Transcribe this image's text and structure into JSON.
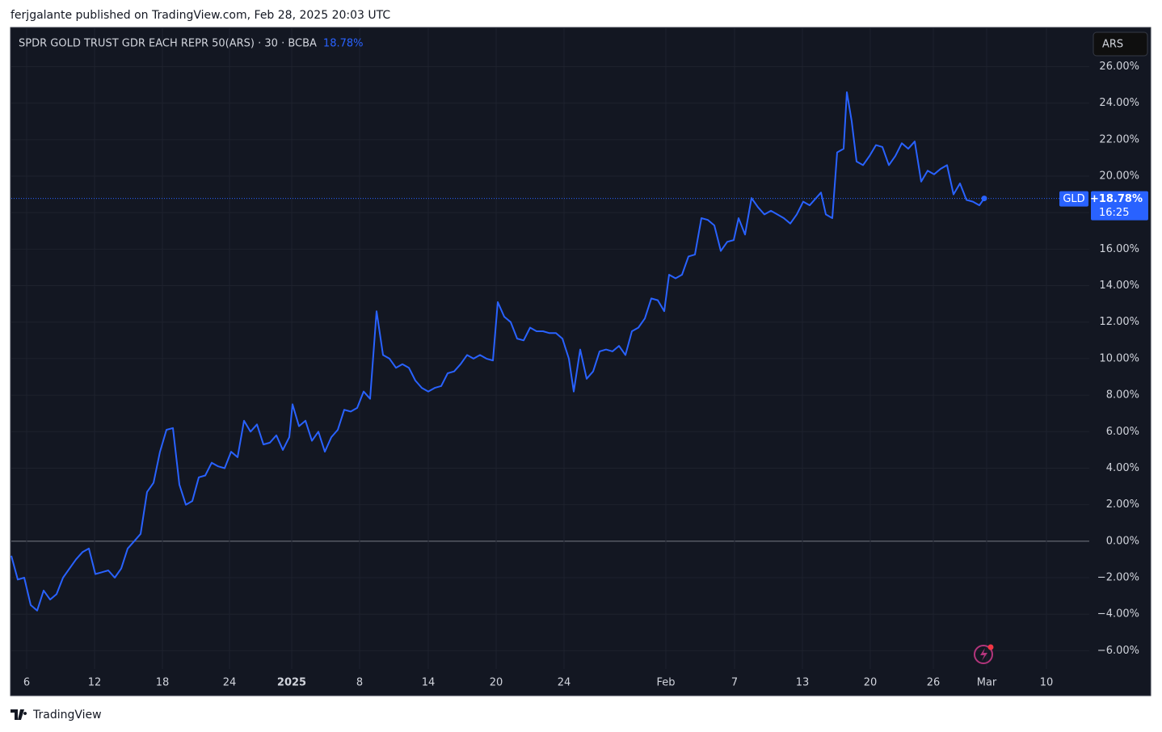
{
  "header": {
    "publisher": "ferjgalante published on TradingView.com, Feb 28, 2025 20:03 UTC"
  },
  "chart_data": {
    "type": "line",
    "title": "SPDR GOLD TRUST GDR EACH REPR 50(ARS) · 30 · BCBA",
    "change_label": "18.78%",
    "currency": "ARS",
    "last_value_label": "+18.78%",
    "countdown": "16:25",
    "x": [
      0,
      8,
      16,
      24,
      32,
      40,
      48,
      56,
      64,
      72,
      80,
      88,
      96,
      104,
      112,
      120,
      128,
      136,
      144,
      152,
      160,
      168,
      176,
      184,
      192,
      200,
      208,
      216,
      224,
      232,
      240,
      248,
      256,
      264,
      272,
      280,
      288,
      296,
      304,
      312,
      320,
      328,
      336,
      344,
      348,
      356,
      364,
      372,
      380,
      388,
      396,
      404,
      412,
      420,
      428,
      436,
      444,
      452,
      460,
      468,
      476,
      484,
      492,
      500,
      508,
      516,
      524,
      532,
      540,
      548,
      556,
      564,
      572,
      580,
      588,
      596,
      602,
      610,
      618,
      626,
      634,
      642,
      650,
      658,
      666,
      674,
      682,
      690,
      696,
      704,
      712,
      720,
      728,
      736,
      744,
      752,
      760,
      768,
      776,
      784,
      792,
      800,
      808,
      814,
      822,
      830,
      838,
      846,
      854,
      862,
      870,
      878,
      886,
      894,
      900,
      908,
      916,
      924,
      932,
      940,
      948,
      956,
      964,
      972,
      980,
      988,
      996,
      1002,
      1008,
      1016,
      1022,
      1030,
      1034,
      1040,
      1046,
      1054,
      1062,
      1070,
      1078,
      1086,
      1094,
      1102,
      1110,
      1118,
      1126,
      1134,
      1142,
      1150,
      1158,
      1166,
      1174,
      1182,
      1190,
      1198,
      1204
    ],
    "series": [
      {
        "name": "GLD",
        "color": "#2962ff",
        "values": [
          -0.8,
          -2.1,
          -2.0,
          -3.5,
          -3.8,
          -2.7,
          -3.2,
          -2.9,
          -2.0,
          -1.5,
          -1.0,
          -0.6,
          -0.4,
          -1.8,
          -1.7,
          -1.6,
          -2.0,
          -1.5,
          -0.4,
          0.0,
          0.4,
          2.7,
          3.2,
          4.9,
          6.1,
          6.2,
          3.1,
          2.0,
          2.2,
          3.5,
          3.6,
          4.3,
          4.1,
          4.0,
          4.9,
          4.6,
          6.6,
          6.0,
          6.4,
          5.3,
          5.4,
          5.8,
          5.0,
          5.7,
          7.5,
          6.3,
          6.6,
          5.5,
          6.0,
          4.9,
          5.7,
          6.1,
          7.2,
          7.1,
          7.3,
          8.2,
          7.8,
          12.6,
          10.2,
          10.0,
          9.5,
          9.7,
          9.5,
          8.8,
          8.4,
          8.2,
          8.4,
          8.5,
          9.2,
          9.3,
          9.7,
          10.2,
          10.0,
          10.2,
          10.0,
          9.9,
          13.1,
          12.3,
          12.0,
          11.1,
          11.0,
          11.7,
          11.5,
          11.5,
          11.4,
          11.4,
          11.1,
          10.0,
          8.2,
          10.5,
          8.9,
          9.3,
          10.4,
          10.5,
          10.4,
          10.7,
          10.2,
          11.5,
          11.7,
          12.2,
          13.3,
          13.2,
          12.6,
          14.6,
          14.4,
          14.6,
          15.6,
          15.7,
          17.7,
          17.6,
          17.3,
          15.9,
          16.4,
          16.5,
          17.7,
          16.8,
          18.8,
          18.3,
          17.9,
          18.1,
          17.9,
          17.7,
          17.4,
          17.9,
          18.6,
          18.4,
          18.8,
          19.1,
          17.9,
          17.7,
          21.3,
          21.5,
          24.6,
          23.0,
          20.8,
          20.6,
          21.1,
          21.7,
          21.6,
          20.6,
          21.1,
          21.8,
          21.5,
          21.9,
          19.7,
          20.3,
          20.1,
          20.4,
          20.6,
          19.0,
          19.6,
          18.7,
          18.6,
          18.4,
          18.78
        ]
      }
    ],
    "xlim": [
      0,
      1334
    ],
    "ylim": [
      -7,
      28.1
    ],
    "xticks": [
      {
        "value": 19,
        "label": "6"
      },
      {
        "value": 103,
        "label": "12"
      },
      {
        "value": 187,
        "label": "18"
      },
      {
        "value": 270,
        "label": "24"
      },
      {
        "value": 347,
        "label": "2025",
        "bold": true
      },
      {
        "value": 431,
        "label": "8"
      },
      {
        "value": 516,
        "label": "14"
      },
      {
        "value": 600,
        "label": "20"
      },
      {
        "value": 684,
        "label": "24"
      },
      {
        "value": 810,
        "label": "Feb"
      },
      {
        "value": 895,
        "label": "7"
      },
      {
        "value": 979,
        "label": "13"
      },
      {
        "value": 1063,
        "label": "20"
      },
      {
        "value": 1141,
        "label": "26"
      },
      {
        "value": 1207,
        "label": "Mar"
      },
      {
        "value": 1281,
        "label": "10"
      }
    ],
    "yticks": [
      {
        "value": -6,
        "label": "−6.00%"
      },
      {
        "value": -4,
        "label": "−4.00%"
      },
      {
        "value": -2,
        "label": "−2.00%"
      },
      {
        "value": 0,
        "label": "0.00%"
      },
      {
        "value": 2,
        "label": "2.00%"
      },
      {
        "value": 4,
        "label": "4.00%"
      },
      {
        "value": 6,
        "label": "6.00%"
      },
      {
        "value": 8,
        "label": "8.00%"
      },
      {
        "value": 10,
        "label": "10.00%"
      },
      {
        "value": 12,
        "label": "12.00%"
      },
      {
        "value": 14,
        "label": "14.00%"
      },
      {
        "value": 16,
        "label": "16.00%"
      },
      {
        "value": 18,
        "label": "18.00%"
      },
      {
        "value": 20,
        "label": "20.00%"
      },
      {
        "value": 22,
        "label": "22.00%"
      },
      {
        "value": 24,
        "label": "24.00%"
      },
      {
        "value": 26,
        "label": "26.00%"
      }
    ],
    "grid": true
  },
  "footer": {
    "brand": "TradingView"
  }
}
